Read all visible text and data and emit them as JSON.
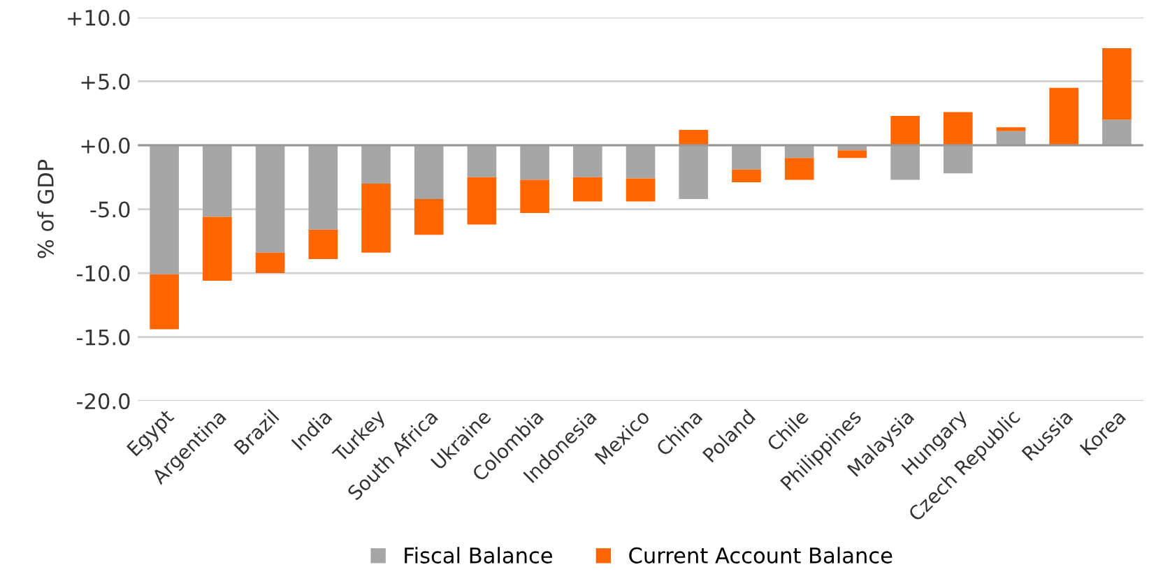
{
  "chart_data": {
    "type": "bar",
    "stacked": true,
    "ylabel": "% of GDP",
    "categories": [
      "Egypt",
      "Argentina",
      "Brazil",
      "India",
      "Turkey",
      "South Africa",
      "Ukraine",
      "Colombia",
      "Indonesia",
      "Mexico",
      "China",
      "Poland",
      "Chile",
      "Philippines",
      "Malaysia",
      "Hungary",
      "Czech Republic",
      "Russia",
      "Korea"
    ],
    "series": [
      {
        "name": "Fiscal Balance",
        "color": "#a6a6a6",
        "values": [
          -10.1,
          -5.6,
          -8.4,
          -6.6,
          -3.0,
          -4.2,
          -2.5,
          -2.7,
          -2.5,
          -2.6,
          -4.2,
          -1.9,
          -1.0,
          -0.4,
          -2.7,
          -2.2,
          1.1,
          0.0,
          2.0
        ]
      },
      {
        "name": "Current Account Balance",
        "color": "#ff6600",
        "values": [
          -4.3,
          -5.0,
          -1.6,
          -2.3,
          -5.4,
          -2.8,
          -3.7,
          -2.6,
          -1.9,
          -1.8,
          1.2,
          -1.0,
          -1.7,
          -0.6,
          2.3,
          2.6,
          0.3,
          4.5,
          5.6
        ]
      }
    ],
    "ylim": [
      -20,
      10
    ],
    "yticks": [
      {
        "value": -20,
        "label": "-20.0"
      },
      {
        "value": -15,
        "label": "-15.0"
      },
      {
        "value": -10,
        "label": "-10.0"
      },
      {
        "value": -5,
        "label": "-5.0"
      },
      {
        "value": 0,
        "label": "+0.0"
      },
      {
        "value": 5,
        "label": "+5.0"
      },
      {
        "value": 10,
        "label": "+10.0"
      }
    ],
    "grid": "y",
    "legend": "bottom"
  }
}
